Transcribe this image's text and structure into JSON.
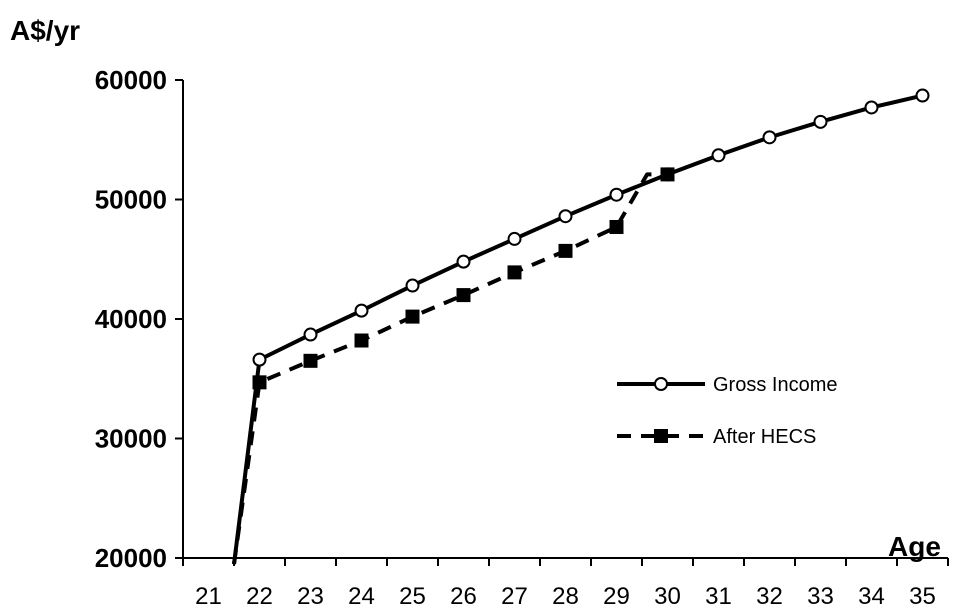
{
  "chart_data": {
    "type": "line",
    "ylabel": "A$/yr",
    "xlabel": "Age",
    "categories": [
      "21",
      "22",
      "23",
      "24",
      "25",
      "26",
      "27",
      "28",
      "29",
      "30",
      "31",
      "32",
      "33",
      "34",
      "35"
    ],
    "ylim": [
      20000,
      60000
    ],
    "yticks": [
      "60000",
      "50000",
      "40000",
      "30000",
      "20000"
    ],
    "legend_position": "center-right",
    "grid": false,
    "series": [
      {
        "name": "Gross Income",
        "style": "solid",
        "marker": "open-circle",
        "color": "#000000",
        "points": [
          [
            21.5,
            19500
          ],
          [
            22,
            36600
          ],
          [
            23,
            38700
          ],
          [
            24,
            40700
          ],
          [
            25,
            42800
          ],
          [
            26,
            44800
          ],
          [
            27,
            46700
          ],
          [
            28,
            48600
          ],
          [
            29,
            50400
          ],
          [
            30,
            52100
          ],
          [
            31,
            53700
          ],
          [
            32,
            55200
          ],
          [
            33,
            56500
          ],
          [
            34,
            57700
          ],
          [
            35,
            58700
          ]
        ],
        "marker_x": [
          22,
          23,
          24,
          25,
          26,
          27,
          28,
          29,
          30,
          31,
          32,
          33,
          34,
          35
        ]
      },
      {
        "name": "After HECS",
        "style": "dashed",
        "marker": "filled-square",
        "color": "#000000",
        "points": [
          [
            21.5,
            19500
          ],
          [
            22,
            34700
          ],
          [
            23,
            36500
          ],
          [
            24,
            38200
          ],
          [
            25,
            40200
          ],
          [
            26,
            42000
          ],
          [
            27,
            43900
          ],
          [
            28,
            45700
          ],
          [
            29,
            47700
          ],
          [
            29.6,
            52100
          ],
          [
            30,
            52100
          ]
        ],
        "marker_x": [
          22,
          23,
          24,
          25,
          26,
          27,
          28,
          29,
          30
        ]
      }
    ]
  }
}
